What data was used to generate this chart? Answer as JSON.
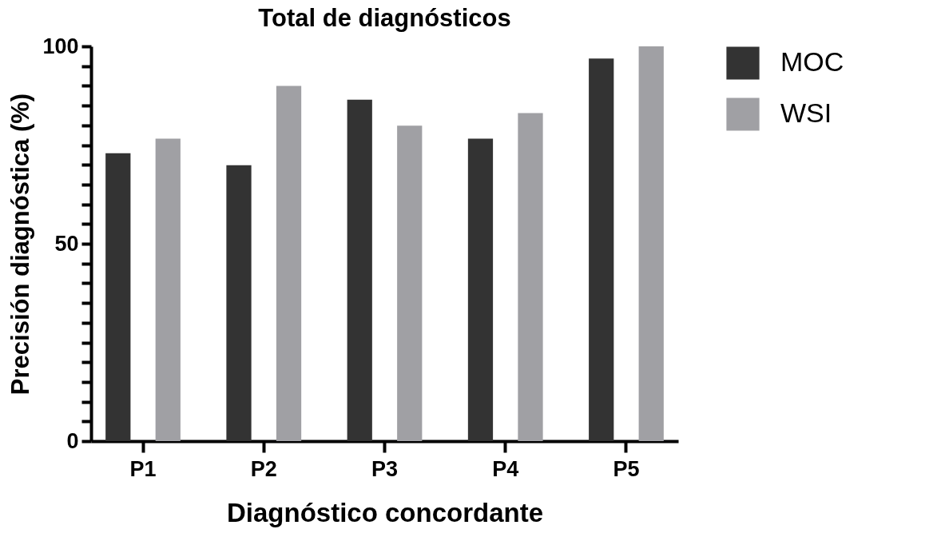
{
  "chart_data": {
    "type": "bar",
    "title": "Total de diagnósticos",
    "xlabel": "Diagnóstico concordante",
    "ylabel": "Precisión diagnóstica (%)",
    "categories": [
      "P1",
      "P2",
      "P3",
      "P4",
      "P5"
    ],
    "series": [
      {
        "name": "MOC",
        "color": "#333333",
        "values": [
          72.9,
          69.9,
          86.5,
          76.6,
          96.9
        ]
      },
      {
        "name": "WSI",
        "color": "#a0a0a4",
        "values": [
          76.6,
          90.0,
          79.9,
          83.1,
          100
        ]
      }
    ],
    "ylim": [
      0,
      100
    ],
    "yticks": [
      0,
      {
        "value": 5,
        "label": null
      },
      {
        "value": 10,
        "label": null
      },
      {
        "value": 15,
        "label": null
      },
      {
        "value": 20,
        "label": null
      },
      {
        "value": 25,
        "label": null
      },
      {
        "value": 30,
        "label": null
      },
      {
        "value": 35,
        "label": null
      },
      {
        "value": 40,
        "label": null
      },
      {
        "value": 45,
        "label": null
      },
      50,
      {
        "value": 55,
        "label": null
      },
      {
        "value": 60,
        "label": null
      },
      {
        "value": 65,
        "label": null
      },
      {
        "value": 70,
        "label": null
      },
      {
        "value": 75,
        "label": null
      },
      {
        "value": 80,
        "label": null
      },
      {
        "value": 85,
        "label": null
      },
      {
        "value": 90,
        "label": null
      },
      {
        "value": 95,
        "label": null
      },
      100
    ],
    "grid": false,
    "legend": "top right"
  }
}
